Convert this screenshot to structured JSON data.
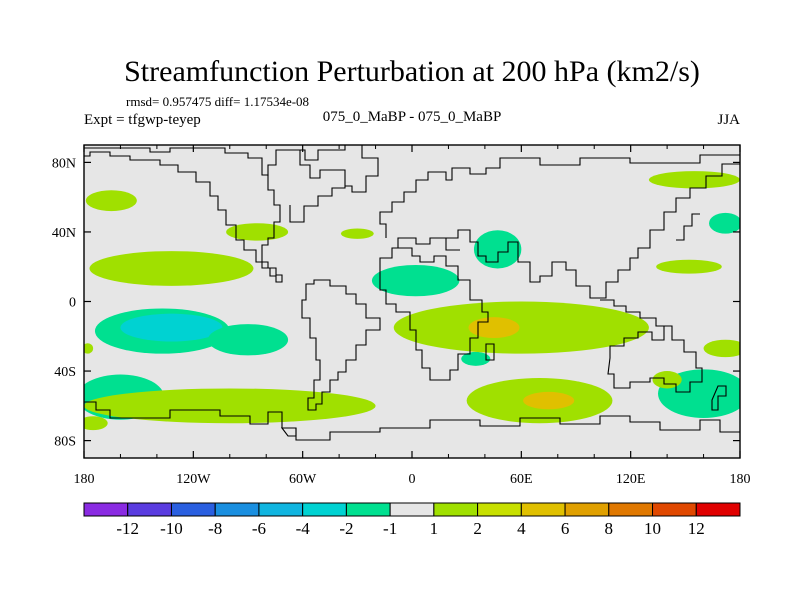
{
  "chart_data": {
    "type": "heatmap",
    "title": "Streamfunction Perturbation at 200 hPa (km2/s)",
    "stats_line": "rmsd= 0.957475 diff= 1.17534e-08",
    "left_label": "Expt = tfgwp-teyep",
    "center_label": "075_0_MaBP - 075_0_MaBP",
    "right_label": "JJA",
    "x_range": [
      -180,
      180
    ],
    "y_range": [
      -90,
      90
    ],
    "x_ticks": [
      {
        "value": -180,
        "label": "180"
      },
      {
        "value": -120,
        "label": "120W"
      },
      {
        "value": -60,
        "label": "60W"
      },
      {
        "value": 0,
        "label": "0"
      },
      {
        "value": 60,
        "label": "60E"
      },
      {
        "value": 120,
        "label": "120E"
      },
      {
        "value": 180,
        "label": "180"
      }
    ],
    "y_ticks": [
      {
        "value": 80,
        "label": "80N"
      },
      {
        "value": 40,
        "label": "40N"
      },
      {
        "value": 0,
        "label": "0"
      },
      {
        "value": -40,
        "label": "40S"
      },
      {
        "value": -80,
        "label": "80S"
      }
    ],
    "colorbar": {
      "colors": [
        "#8a2be2",
        "#5a3ce0",
        "#2a5fe0",
        "#1a8fe0",
        "#10b5e0",
        "#00d2d2",
        "#00e090",
        "#e6e6e6",
        "#a0e000",
        "#c8e000",
        "#e0c000",
        "#e0a000",
        "#e07800",
        "#e04800",
        "#e00000"
      ],
      "boundaries": [
        "-12",
        "-10",
        "-8",
        "-6",
        "-4",
        "-2",
        "-1",
        "1",
        "2",
        "4",
        "6",
        "8",
        "10",
        "12"
      ]
    },
    "blobs": [
      {
        "lon": -137,
        "lat": -17,
        "rlon": 37,
        "rlat": 13,
        "level": 1
      },
      {
        "lon": -132,
        "lat": -15,
        "rlon": 28,
        "rlat": 8,
        "level": 0
      },
      {
        "lon": -90,
        "lat": -22,
        "rlon": 22,
        "rlat": 9,
        "level": 1
      },
      {
        "lon": -160,
        "lat": -55,
        "rlon": 24,
        "rlat": 13,
        "level": 1
      },
      {
        "lon": -100,
        "lat": -60,
        "rlon": 80,
        "rlat": 10,
        "level": 2
      },
      {
        "lon": -132,
        "lat": 19,
        "rlon": 45,
        "rlat": 10,
        "level": 2
      },
      {
        "lon": -165,
        "lat": 58,
        "rlon": 14,
        "rlat": 6,
        "level": 2
      },
      {
        "lon": -85,
        "lat": 40,
        "rlon": 17,
        "rlat": 5,
        "level": 2
      },
      {
        "lon": -30,
        "lat": 39,
        "rlon": 9,
        "rlat": 3,
        "level": 2
      },
      {
        "lon": 2,
        "lat": 12,
        "rlon": 24,
        "rlat": 9,
        "level": 1
      },
      {
        "lon": 47,
        "lat": 30,
        "rlon": 13,
        "rlat": 11,
        "level": 1
      },
      {
        "lon": 35,
        "lat": -33,
        "rlon": 8,
        "rlat": 4,
        "level": 1
      },
      {
        "lon": 60,
        "lat": -15,
        "rlon": 70,
        "rlat": 15,
        "level": 2
      },
      {
        "lon": 45,
        "lat": -15,
        "rlon": 14,
        "rlat": 6,
        "level": 3
      },
      {
        "lon": 70,
        "lat": -57,
        "rlon": 40,
        "rlat": 13,
        "level": 2
      },
      {
        "lon": 75,
        "lat": -57,
        "rlon": 14,
        "rlat": 5,
        "level": 3
      },
      {
        "lon": 155,
        "lat": 70,
        "rlon": 25,
        "rlat": 5,
        "level": 2
      },
      {
        "lon": 172,
        "lat": 45,
        "rlon": 9,
        "rlat": 6,
        "level": 1
      },
      {
        "lon": 152,
        "lat": 20,
        "rlon": 18,
        "rlat": 4,
        "level": 2
      },
      {
        "lon": 172,
        "lat": -27,
        "rlon": 12,
        "rlat": 5,
        "level": 2
      },
      {
        "lon": 160,
        "lat": -53,
        "rlon": 25,
        "rlat": 14,
        "level": 1
      },
      {
        "lon": 140,
        "lat": -45,
        "rlon": 8,
        "rlat": 5,
        "level": 2
      },
      {
        "lon": -175,
        "lat": -70,
        "rlon": 8,
        "rlat": 4,
        "level": 2
      },
      {
        "lon": -178,
        "lat": -27,
        "rlon": 3,
        "rlat": 3,
        "level": 2
      }
    ]
  }
}
